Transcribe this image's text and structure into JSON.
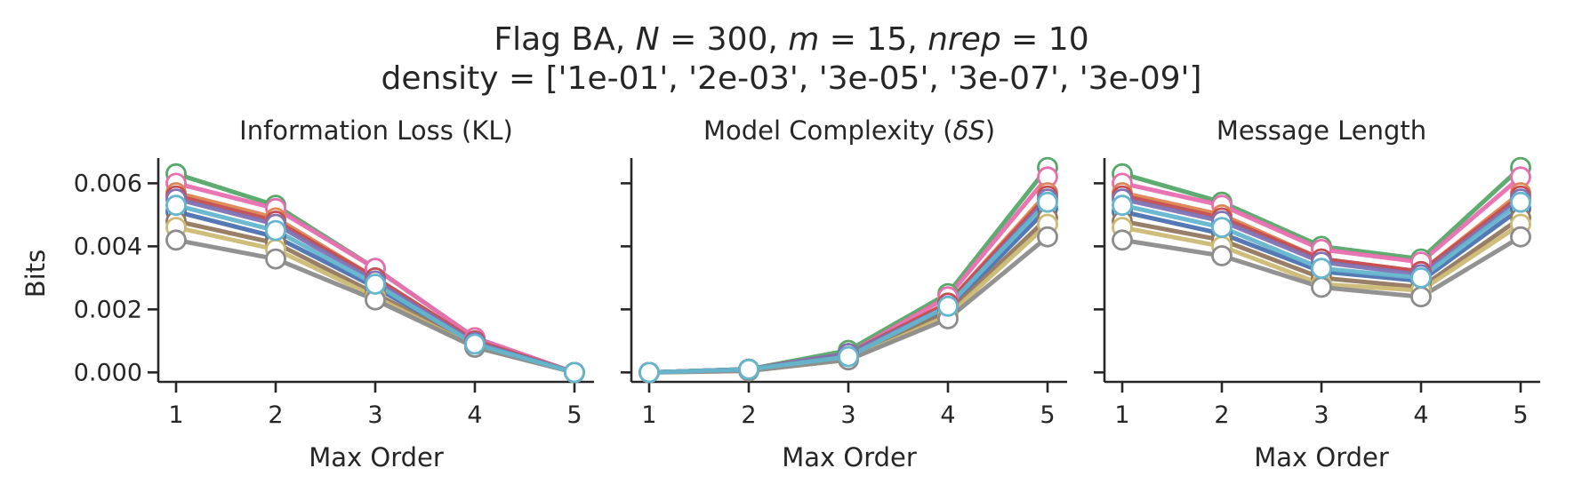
{
  "figure": {
    "title_prefix": "Flag BA, ",
    "title_N": "N",
    "title_N_val": " = 300, ",
    "title_m": "m",
    "title_m_val": " = 15, ",
    "title_nrep": "nrep",
    "title_nrep_val": " = 10",
    "subtitle": "density = ['1e-01', '2e-03', '3e-05', '3e-07', '3e-09']"
  },
  "chart_data": [
    {
      "type": "line",
      "title": "Information Loss (KL)",
      "xlabel": "Max Order",
      "ylabel": "Bits",
      "x": [
        1,
        2,
        3,
        4,
        5
      ],
      "xticks": [
        "1",
        "2",
        "3",
        "4",
        "5"
      ],
      "yticks": [
        "0.000",
        "0.002",
        "0.004",
        "0.006"
      ],
      "ylim": [
        -0.0003,
        0.0068
      ],
      "grid": false,
      "series": [
        {
          "color": "#55a868",
          "values": [
            0.0063,
            0.0053,
            0.0033,
            0.0011,
            0.0
          ]
        },
        {
          "color": "#e96eb0",
          "values": [
            0.006,
            0.0052,
            0.0033,
            0.0011,
            0.0
          ]
        },
        {
          "color": "#dd8452",
          "values": [
            0.0057,
            0.0049,
            0.003,
            0.001,
            0.0
          ]
        },
        {
          "color": "#c44e52",
          "values": [
            0.0056,
            0.0048,
            0.003,
            0.001,
            0.0
          ]
        },
        {
          "color": "#8172b3",
          "values": [
            0.0055,
            0.0047,
            0.0029,
            0.00095,
            0.0
          ]
        },
        {
          "color": "#4c72b0",
          "values": [
            0.0051,
            0.0043,
            0.0027,
            0.0009,
            0.0
          ]
        },
        {
          "color": "#937860",
          "values": [
            0.0048,
            0.0041,
            0.0025,
            0.00085,
            0.0
          ]
        },
        {
          "color": "#ccb974",
          "values": [
            0.0046,
            0.0039,
            0.0024,
            0.0008,
            0.0
          ]
        },
        {
          "color": "#8c8c8c",
          "values": [
            0.0042,
            0.0036,
            0.0023,
            0.0008,
            0.0
          ]
        },
        {
          "color": "#64b5cd",
          "values": [
            0.0053,
            0.0045,
            0.0028,
            0.0009,
            0.0
          ]
        }
      ]
    },
    {
      "type": "line",
      "title": "Model Complexity (",
      "title_symbol": "δS",
      "title_suffix": ")",
      "xlabel": "Max Order",
      "x": [
        1,
        2,
        3,
        4,
        5
      ],
      "xticks": [
        "1",
        "2",
        "3",
        "4",
        "5"
      ],
      "ylim": [
        -0.0003,
        0.0068
      ],
      "grid": false,
      "series": [
        {
          "color": "#55a868",
          "values": [
            0.0,
            0.0001,
            0.0007,
            0.0025,
            0.0065
          ]
        },
        {
          "color": "#e96eb0",
          "values": [
            0.0,
            0.0001,
            0.0006,
            0.0024,
            0.0062
          ]
        },
        {
          "color": "#dd8452",
          "values": [
            0.0,
            0.0001,
            0.0006,
            0.0022,
            0.0057
          ]
        },
        {
          "color": "#c44e52",
          "values": [
            0.0,
            0.0001,
            0.0006,
            0.0022,
            0.0056
          ]
        },
        {
          "color": "#8172b3",
          "values": [
            0.0,
            0.0001,
            0.0006,
            0.0021,
            0.0055
          ]
        },
        {
          "color": "#4c72b0",
          "values": [
            0.0,
            0.0001,
            0.0005,
            0.002,
            0.0052
          ]
        },
        {
          "color": "#937860",
          "values": [
            0.0,
            0.0001,
            0.0005,
            0.0019,
            0.0049
          ]
        },
        {
          "color": "#ccb974",
          "values": [
            0.0,
            5e-05,
            0.0004,
            0.0018,
            0.0047
          ]
        },
        {
          "color": "#8c8c8c",
          "values": [
            0.0,
            5e-05,
            0.0004,
            0.0017,
            0.0043
          ]
        },
        {
          "color": "#64b5cd",
          "values": [
            0.0,
            0.0001,
            0.0005,
            0.0021,
            0.0054
          ]
        }
      ]
    },
    {
      "type": "line",
      "title": "Message Length",
      "xlabel": "Max Order",
      "x": [
        1,
        2,
        3,
        4,
        5
      ],
      "xticks": [
        "1",
        "2",
        "3",
        "4",
        "5"
      ],
      "ylim": [
        -0.0003,
        0.0068
      ],
      "grid": false,
      "series": [
        {
          "color": "#55a868",
          "values": [
            0.0063,
            0.0054,
            0.004,
            0.0036,
            0.0065
          ]
        },
        {
          "color": "#e96eb0",
          "values": [
            0.006,
            0.0053,
            0.0039,
            0.0035,
            0.0062
          ]
        },
        {
          "color": "#dd8452",
          "values": [
            0.0057,
            0.005,
            0.0036,
            0.0032,
            0.0057
          ]
        },
        {
          "color": "#c44e52",
          "values": [
            0.0056,
            0.0049,
            0.0036,
            0.0032,
            0.0056
          ]
        },
        {
          "color": "#8172b3",
          "values": [
            0.0055,
            0.0048,
            0.0035,
            0.0031,
            0.0055
          ]
        },
        {
          "color": "#4c72b0",
          "values": [
            0.0051,
            0.0044,
            0.0032,
            0.0029,
            0.0052
          ]
        },
        {
          "color": "#937860",
          "values": [
            0.0048,
            0.0042,
            0.003,
            0.0027,
            0.0049
          ]
        },
        {
          "color": "#ccb974",
          "values": [
            0.0046,
            0.004,
            0.0028,
            0.0026,
            0.0047
          ]
        },
        {
          "color": "#8c8c8c",
          "values": [
            0.0042,
            0.0037,
            0.0027,
            0.0024,
            0.0043
          ]
        },
        {
          "color": "#64b5cd",
          "values": [
            0.0053,
            0.0046,
            0.0033,
            0.003,
            0.0054
          ]
        }
      ]
    }
  ]
}
